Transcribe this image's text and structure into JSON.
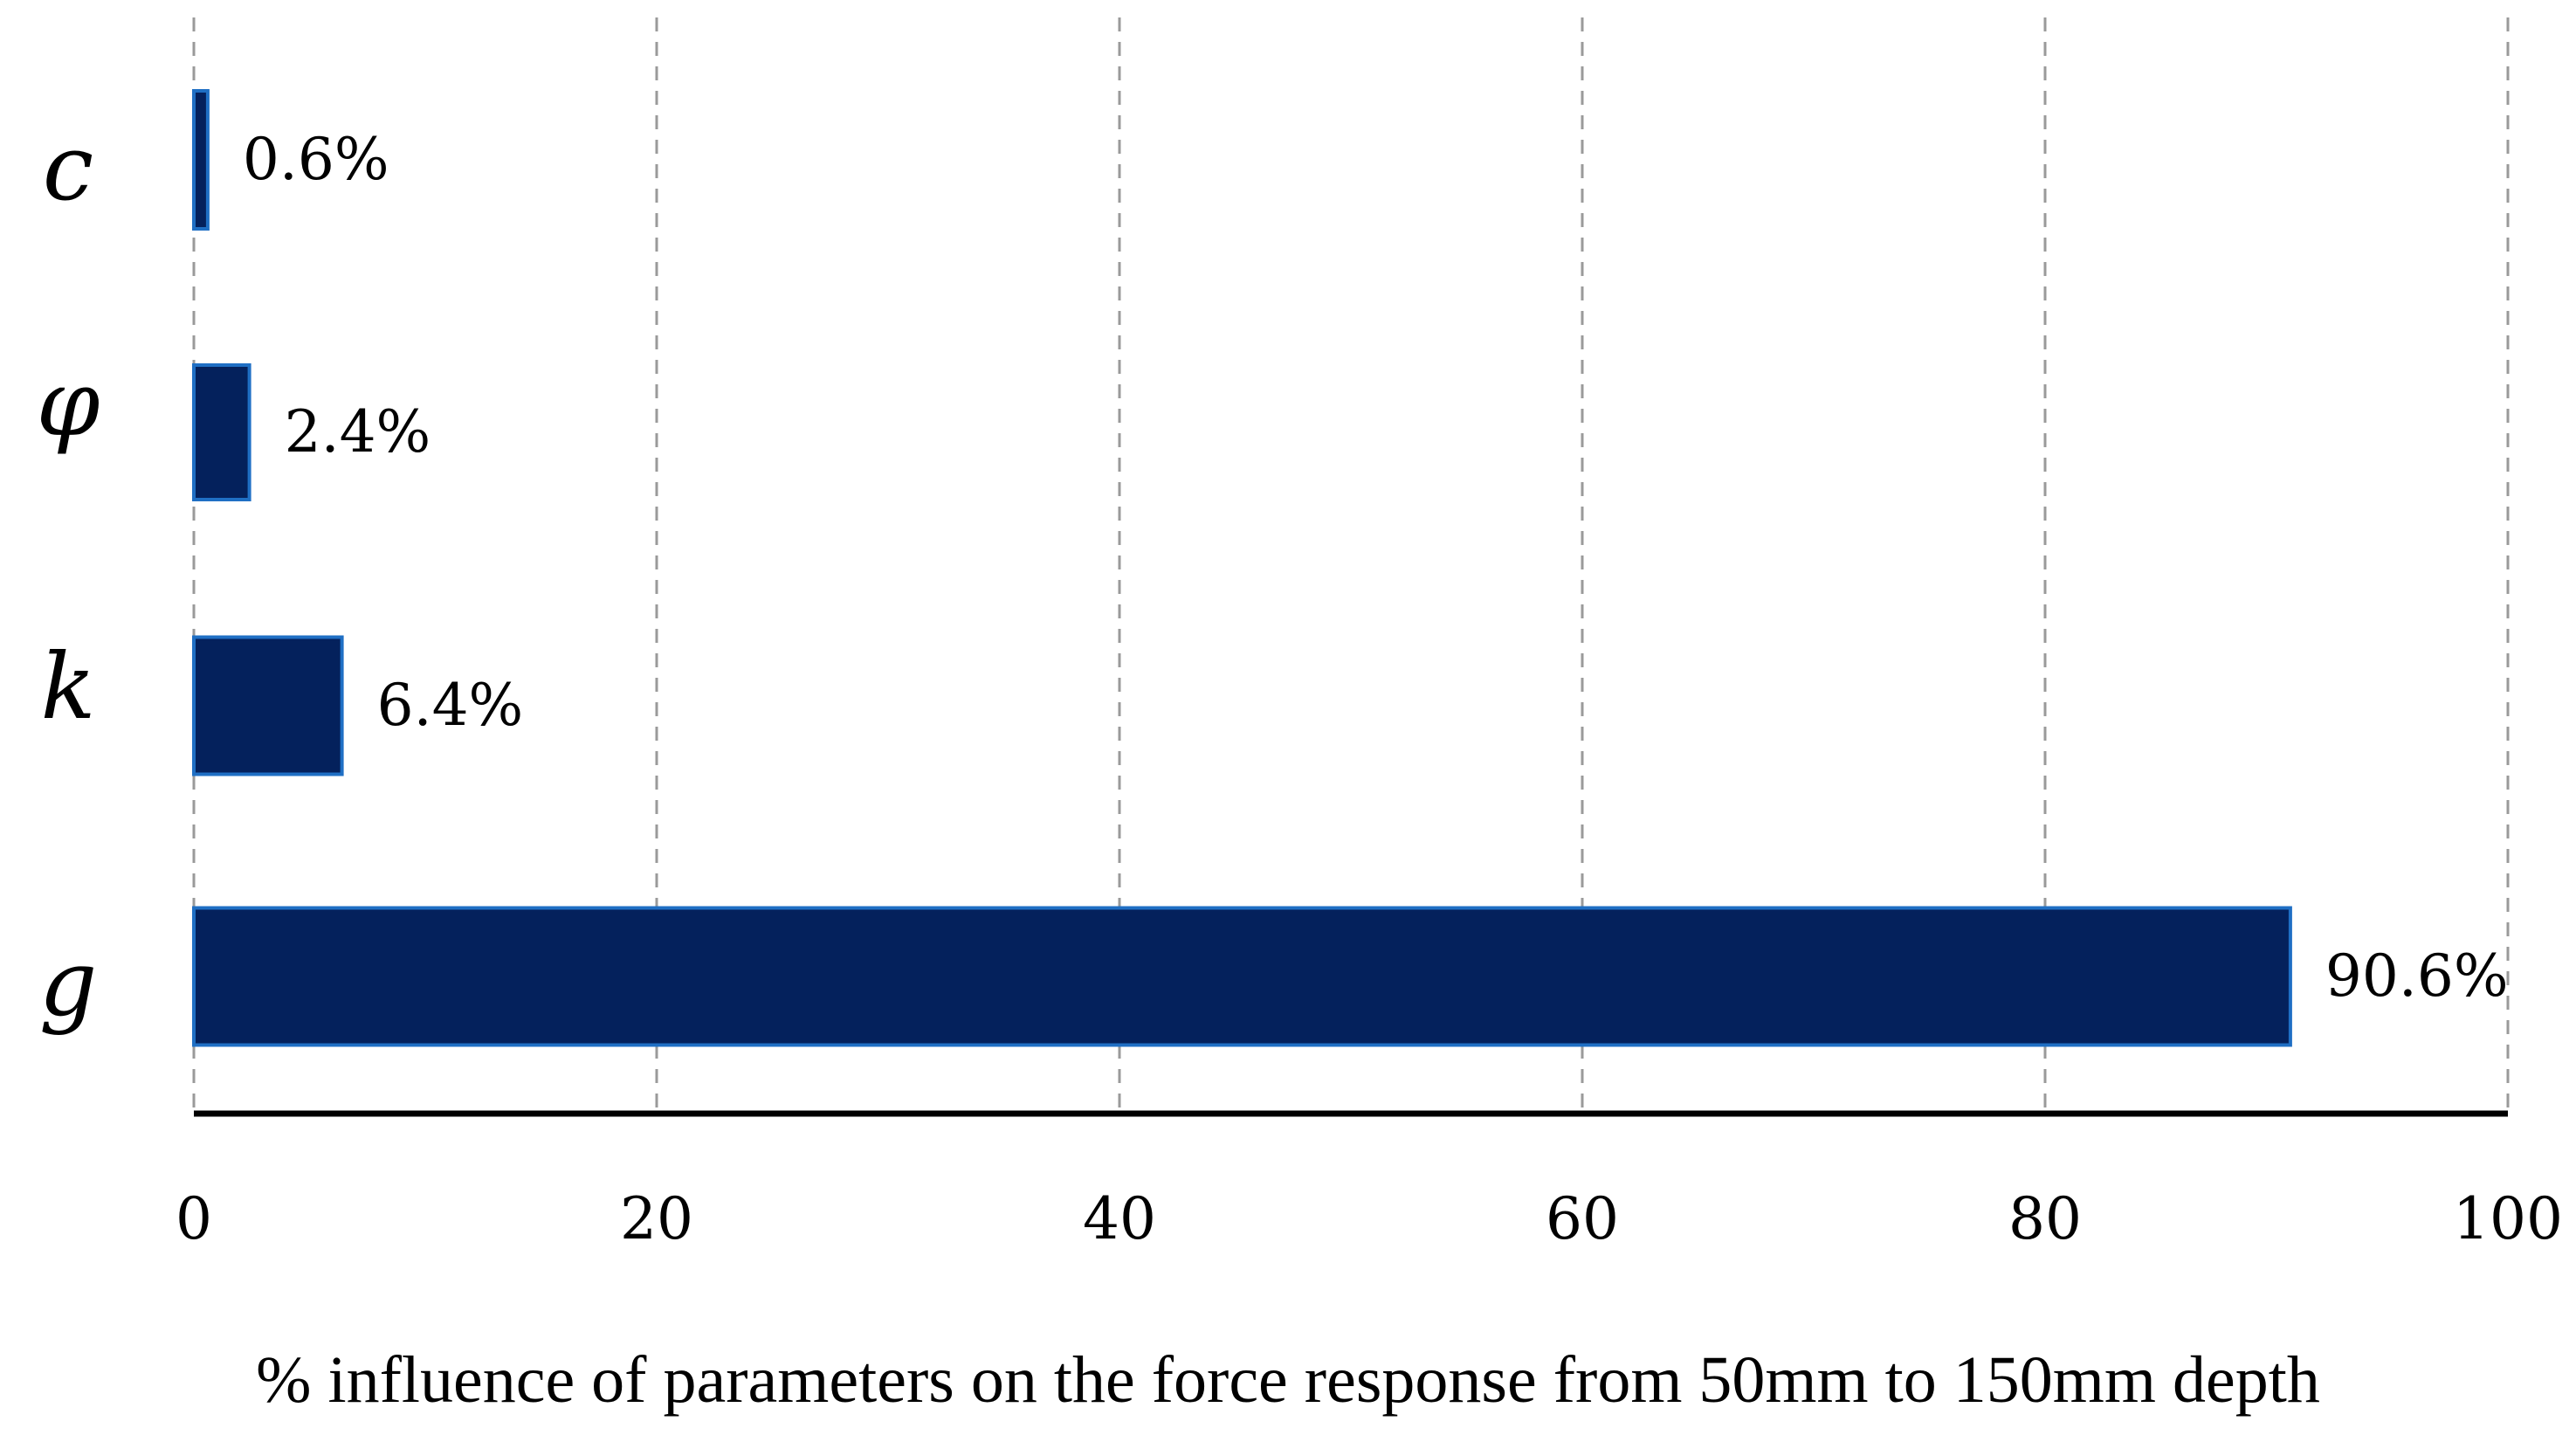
{
  "chart_data": {
    "type": "bar",
    "orientation": "horizontal",
    "categories": [
      "c",
      "φ",
      "k",
      "g"
    ],
    "values": [
      0.6,
      2.4,
      6.4,
      90.6
    ],
    "value_labels": [
      "0.6%",
      "2.4%",
      "6.4%",
      "90.6%"
    ],
    "xlabel": "% influence of parameters on the force response from 50mm to 150mm depth",
    "ylabel": "",
    "xlim": [
      0,
      100
    ],
    "xticks": [
      0,
      20,
      40,
      60,
      80,
      100
    ],
    "grid": "vertical dashed",
    "bar_color": "#04215c",
    "bar_edge_color": "#1f6fc4"
  }
}
